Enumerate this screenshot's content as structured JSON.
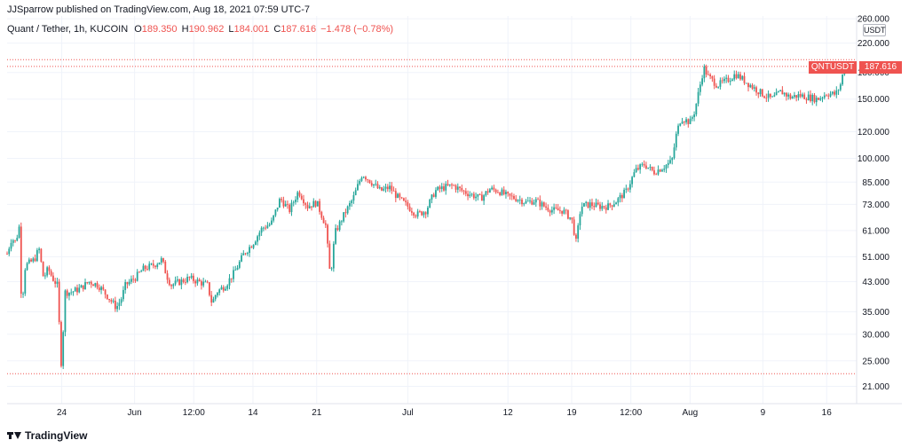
{
  "header": {
    "published": "JJSparrow published on TradingView.com, Aug 18, 2021 07:59 UTC-7"
  },
  "legend": {
    "title": "Quant / Tether, 1h, KUCOIN",
    "o_label": "O",
    "o_value": "189.350",
    "h_label": "H",
    "h_value": "190.962",
    "l_label": "L",
    "l_value": "184.001",
    "c_label": "C",
    "c_value": "187.616",
    "change": "−1.478 (−0.78%)"
  },
  "price_axis": {
    "unit": "USDT",
    "symbol_tag": "QNTUSDT",
    "last_price_tag": "187.616"
  },
  "footer": {
    "brand": "TradingView"
  },
  "colors": {
    "up": "#26a69a",
    "down": "#ef5350",
    "grid": "#f0f3fa",
    "text": "#131722",
    "dotted": "#ef5350"
  },
  "chart_data": {
    "type": "candlestick",
    "title": "Quant / Tether, 1h, KUCOIN",
    "y_scale": "log",
    "ylim": [
      19,
      265
    ],
    "y_ticks": [
      {
        "value": 260,
        "label": "260.000"
      },
      {
        "value": 220,
        "label": "220.000"
      },
      {
        "value": 180,
        "label": "180.000"
      },
      {
        "value": 150,
        "label": "150.000"
      },
      {
        "value": 120,
        "label": "120.000"
      },
      {
        "value": 100,
        "label": "100.000"
      },
      {
        "value": 85,
        "label": "85.000"
      },
      {
        "value": 73,
        "label": "73.000"
      },
      {
        "value": 61,
        "label": "61.000"
      },
      {
        "value": 51,
        "label": "51.000"
      },
      {
        "value": 43,
        "label": "43.000"
      },
      {
        "value": 35,
        "label": "35.000"
      },
      {
        "value": 30,
        "label": "30.000"
      },
      {
        "value": 25,
        "label": "25.000"
      },
      {
        "value": 21,
        "label": "21.000"
      }
    ],
    "x_ticks": [
      {
        "day": 6,
        "label": "24"
      },
      {
        "day": 14,
        "label": "Jun"
      },
      {
        "day": 20.5,
        "label": "12:00"
      },
      {
        "day": 27,
        "label": "14"
      },
      {
        "day": 34,
        "label": "21"
      },
      {
        "day": 44,
        "label": "Jul"
      },
      {
        "day": 55,
        "label": "12"
      },
      {
        "day": 62,
        "label": "19"
      },
      {
        "day": 68.5,
        "label": "12:00"
      },
      {
        "day": 75,
        "label": "Aug"
      },
      {
        "day": 83,
        "label": "9"
      },
      {
        "day": 90,
        "label": "16"
      }
    ],
    "x_range_days": [
      0,
      93
    ],
    "reference_lines": [
      {
        "value": 196.5,
        "label": "period high"
      },
      {
        "value": 187.616,
        "label": "last price"
      },
      {
        "value": 22.9,
        "label": "period low"
      }
    ],
    "price_path": [
      [
        0,
        52
      ],
      [
        0.5,
        58
      ],
      [
        1,
        56
      ],
      [
        1.3,
        65
      ],
      [
        1.6,
        36
      ],
      [
        2,
        48
      ],
      [
        3,
        50
      ],
      [
        3.5,
        54
      ],
      [
        4,
        44
      ],
      [
        4.5,
        47
      ],
      [
        5,
        44
      ],
      [
        5.5,
        42
      ],
      [
        6,
        23
      ],
      [
        6.3,
        40
      ],
      [
        7,
        40
      ],
      [
        8,
        41
      ],
      [
        9,
        43
      ],
      [
        10,
        42
      ],
      [
        11,
        39
      ],
      [
        12,
        36
      ],
      [
        12.5,
        38
      ],
      [
        13,
        42
      ],
      [
        14,
        44
      ],
      [
        15,
        47
      ],
      [
        16,
        48
      ],
      [
        17,
        50
      ],
      [
        17.5,
        45
      ],
      [
        18,
        42
      ],
      [
        19,
        43
      ],
      [
        20,
        44
      ],
      [
        21,
        43
      ],
      [
        22,
        42
      ],
      [
        22.5,
        37
      ],
      [
        23,
        40
      ],
      [
        24,
        42
      ],
      [
        25,
        46
      ],
      [
        26,
        52
      ],
      [
        27,
        56
      ],
      [
        28,
        62
      ],
      [
        29,
        64
      ],
      [
        30,
        76
      ],
      [
        31,
        70
      ],
      [
        32,
        80
      ],
      [
        33,
        72
      ],
      [
        34,
        74
      ],
      [
        35,
        63
      ],
      [
        35.5,
        44
      ],
      [
        36,
        60
      ],
      [
        37,
        68
      ],
      [
        38,
        76
      ],
      [
        39,
        90
      ],
      [
        40,
        85
      ],
      [
        41,
        80
      ],
      [
        42,
        82
      ],
      [
        43,
        76
      ],
      [
        44,
        72
      ],
      [
        45,
        68
      ],
      [
        46,
        70
      ],
      [
        47,
        80
      ],
      [
        48,
        82
      ],
      [
        49,
        83
      ],
      [
        50,
        80
      ],
      [
        51,
        78
      ],
      [
        52,
        76
      ],
      [
        53,
        81
      ],
      [
        54,
        80
      ],
      [
        55,
        77
      ],
      [
        56,
        76
      ],
      [
        57,
        74
      ],
      [
        58,
        75
      ],
      [
        59,
        72
      ],
      [
        60,
        70
      ],
      [
        61,
        70
      ],
      [
        61.5,
        68
      ],
      [
        62,
        66
      ],
      [
        62.5,
        56
      ],
      [
        63,
        72
      ],
      [
        64,
        73
      ],
      [
        65,
        72
      ],
      [
        66,
        72
      ],
      [
        67,
        75
      ],
      [
        68,
        80
      ],
      [
        69,
        92
      ],
      [
        70,
        96
      ],
      [
        71,
        91
      ],
      [
        72,
        94
      ],
      [
        73,
        98
      ],
      [
        73.5,
        118
      ],
      [
        74,
        132
      ],
      [
        75,
        128
      ],
      [
        75.5,
        138
      ],
      [
        76,
        160
      ],
      [
        76.5,
        186
      ],
      [
        77,
        175
      ],
      [
        78,
        165
      ],
      [
        79,
        170
      ],
      [
        80,
        178
      ],
      [
        81,
        170
      ],
      [
        82,
        162
      ],
      [
        83,
        155
      ],
      [
        84,
        150
      ],
      [
        85,
        158
      ],
      [
        86,
        152
      ],
      [
        87,
        154
      ],
      [
        88,
        152
      ],
      [
        89,
        150
      ],
      [
        90,
        156
      ],
      [
        91,
        155
      ],
      [
        91.5,
        165
      ],
      [
        92,
        190
      ],
      [
        92.5,
        187.6
      ]
    ]
  }
}
